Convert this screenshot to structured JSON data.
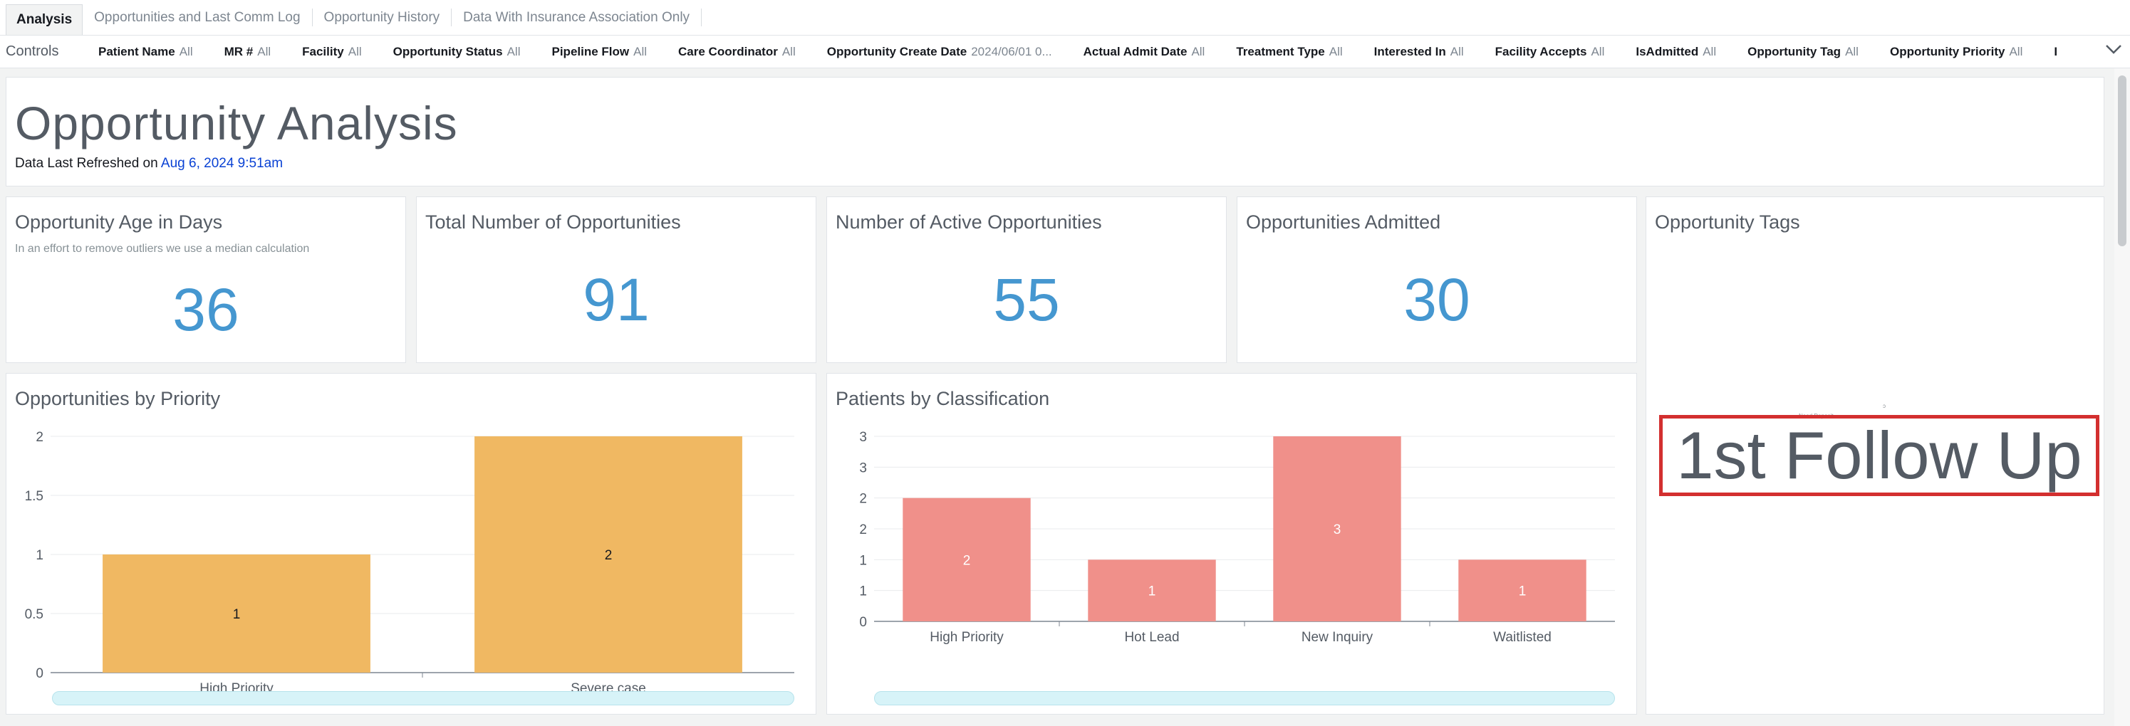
{
  "tabs": [
    {
      "label": "Analysis",
      "active": true
    },
    {
      "label": "Opportunities and Last Comm Log"
    },
    {
      "label": "Opportunity History"
    },
    {
      "label": "Data With Insurance Association Only"
    }
  ],
  "controls": {
    "label": "Controls",
    "items": [
      {
        "name": "Patient Name",
        "value": "All"
      },
      {
        "name": "MR #",
        "value": "All"
      },
      {
        "name": "Facility",
        "value": "All"
      },
      {
        "name": "Opportunity Status",
        "value": "All"
      },
      {
        "name": "Pipeline Flow",
        "value": "All"
      },
      {
        "name": "Care Coordinator",
        "value": "All"
      },
      {
        "name": "Opportunity Create Date",
        "value": "2024/06/01 0..."
      },
      {
        "name": "Actual Admit Date",
        "value": "All"
      },
      {
        "name": "Treatment Type",
        "value": "All"
      },
      {
        "name": "Interested In",
        "value": "All"
      },
      {
        "name": "Facility Accepts",
        "value": "All"
      },
      {
        "name": "IsAdmitted",
        "value": "All"
      },
      {
        "name": "Opportunity Tag",
        "value": "All"
      },
      {
        "name": "Opportunity Priority",
        "value": "All"
      },
      {
        "name": "I",
        "value": ""
      }
    ]
  },
  "header": {
    "title": "Opportunity Analysis",
    "refresh_prefix": "Data Last Refreshed on ",
    "refresh_date": "Aug 6, 2024 9:51am"
  },
  "kpis": {
    "age": {
      "title": "Opportunity Age in Days",
      "subtitle": "In an effort to remove outliers we use a median calculation",
      "value": "36"
    },
    "total": {
      "title": "Total Number of Opportunities",
      "value": "91"
    },
    "active": {
      "title": "Number of Active Opportunities",
      "value": "55"
    },
    "admitted": {
      "title": "Opportunities Admitted",
      "value": "30"
    }
  },
  "tags": {
    "title": "Opportunity Tags",
    "main_tag": "1st Follow Up",
    "mini_tag": "Need Deposit"
  },
  "chart_data": [
    {
      "type": "bar",
      "title": "Opportunities by Priority",
      "categories": [
        "High Priority",
        "Severe case"
      ],
      "values": [
        1,
        2
      ],
      "ylim": [
        0,
        2
      ],
      "yticks": [
        "0",
        "0.5",
        "1",
        "1.5",
        "2"
      ],
      "color": "#f0b862",
      "label_color": "#16191f",
      "grid": true
    },
    {
      "type": "bar",
      "title": "Patients by Classification",
      "categories": [
        "High Priority",
        "Hot Lead",
        "New Inquiry",
        "Waitlisted"
      ],
      "values": [
        2,
        1,
        3,
        1
      ],
      "ylim": [
        0,
        3
      ],
      "yticks": [
        "0",
        "1",
        "1",
        "2",
        "2",
        "3",
        "3"
      ],
      "color": "#f0908a",
      "label_color": "#ffffff",
      "grid": true
    }
  ]
}
